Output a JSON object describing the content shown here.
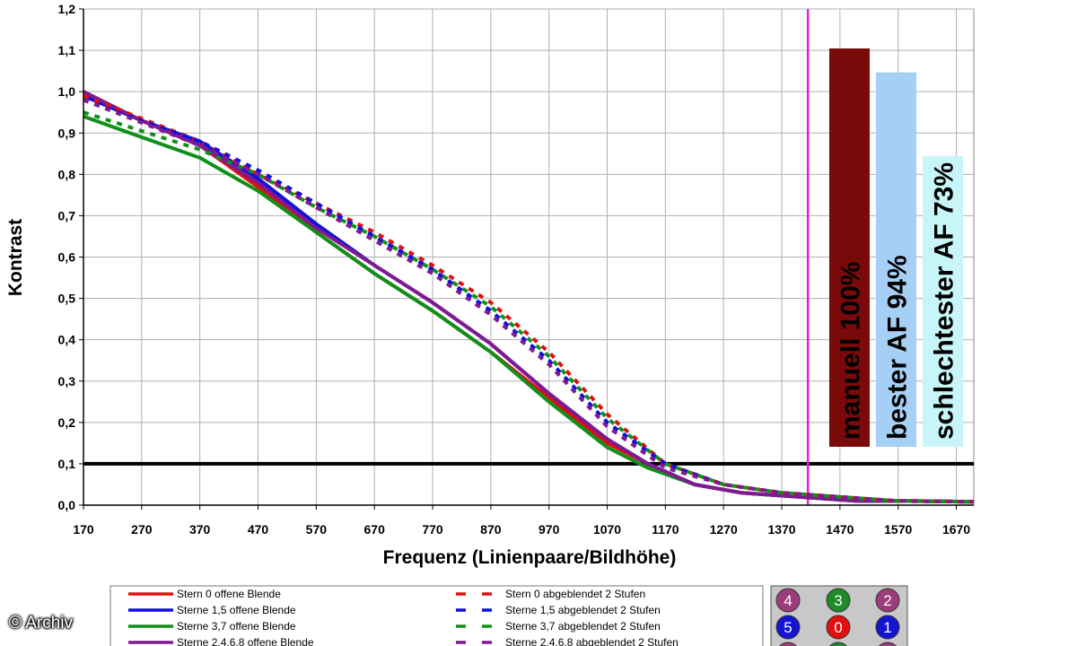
{
  "chart_data": {
    "type": "line",
    "xlabel": "Frequenz (Linienpaare/Bildhöhe)",
    "ylabel": "Kontrast",
    "xlim": [
      170,
      1700
    ],
    "ylim": [
      0,
      1.2
    ],
    "x_ticks": [
      "170",
      "270",
      "370",
      "470",
      "570",
      "670",
      "770",
      "870",
      "970",
      "1070",
      "1170",
      "1270",
      "1370",
      "1470",
      "1570",
      "1670"
    ],
    "y_ticks": [
      "0,0",
      "0,1",
      "0,2",
      "0,3",
      "0,4",
      "0,5",
      "0,6",
      "0,7",
      "0,8",
      "0,9",
      "1,0",
      "1,1",
      "1,2"
    ],
    "threshold_line": {
      "y": 0.1,
      "color": "#000000"
    },
    "marker_line": {
      "x": 1415,
      "color": "#e020e0"
    },
    "series": [
      {
        "name": "Stern 0 offene Blende",
        "color": "#e01010",
        "dash": false,
        "x": [
          170,
          270,
          370,
          470,
          570,
          670,
          770,
          870,
          970,
          1070,
          1140,
          1220,
          1300,
          1400,
          1500,
          1600,
          1700
        ],
        "y": [
          1.0,
          0.93,
          0.87,
          0.77,
          0.66,
          0.56,
          0.47,
          0.37,
          0.26,
          0.15,
          0.1,
          0.05,
          0.03,
          0.02,
          0.01,
          0.01,
          0.008
        ]
      },
      {
        "name": "Sterne 1,5 offene Blende",
        "color": "#1010e0",
        "dash": false,
        "x": [
          170,
          270,
          370,
          470,
          570,
          670,
          770,
          870,
          970,
          1070,
          1140,
          1220,
          1300,
          1400,
          1500,
          1600,
          1700
        ],
        "y": [
          0.99,
          0.93,
          0.88,
          0.79,
          0.68,
          0.58,
          0.49,
          0.39,
          0.27,
          0.16,
          0.1,
          0.05,
          0.03,
          0.02,
          0.01,
          0.01,
          0.008
        ]
      },
      {
        "name": "Sterne 3,7 offene Blende",
        "color": "#10901a",
        "dash": false,
        "x": [
          170,
          270,
          370,
          470,
          570,
          670,
          770,
          870,
          970,
          1070,
          1140,
          1220,
          1300,
          1400,
          1500,
          1600,
          1700
        ],
        "y": [
          0.94,
          0.89,
          0.84,
          0.76,
          0.66,
          0.56,
          0.47,
          0.37,
          0.25,
          0.14,
          0.09,
          0.05,
          0.03,
          0.02,
          0.01,
          0.01,
          0.008
        ]
      },
      {
        "name": "Sterne 2,4,6,8 offene Blende",
        "color": "#801a90",
        "dash": false,
        "x": [
          170,
          270,
          370,
          470,
          570,
          670,
          770,
          870,
          970,
          1070,
          1140,
          1220,
          1300,
          1400,
          1500,
          1600,
          1700
        ],
        "y": [
          1.0,
          0.93,
          0.87,
          0.78,
          0.67,
          0.58,
          0.49,
          0.39,
          0.27,
          0.16,
          0.1,
          0.05,
          0.03,
          0.02,
          0.01,
          0.01,
          0.008
        ]
      },
      {
        "name": "Stern 0 abgeblendet 2 Stufen",
        "color": "#e01010",
        "dash": true,
        "x": [
          170,
          370,
          470,
          570,
          670,
          770,
          870,
          970,
          1070,
          1170,
          1270,
          1370,
          1470,
          1570,
          1700
        ],
        "y": [
          0.99,
          0.88,
          0.8,
          0.73,
          0.66,
          0.58,
          0.49,
          0.37,
          0.22,
          0.1,
          0.05,
          0.03,
          0.02,
          0.01,
          0.008
        ]
      },
      {
        "name": "Sterne 1,5 abgeblendet 2 Stufen",
        "color": "#1010e0",
        "dash": true,
        "x": [
          170,
          370,
          470,
          570,
          670,
          770,
          870,
          970,
          1070,
          1170,
          1270,
          1370,
          1470,
          1570,
          1700
        ],
        "y": [
          0.98,
          0.88,
          0.81,
          0.73,
          0.65,
          0.57,
          0.47,
          0.35,
          0.2,
          0.1,
          0.05,
          0.03,
          0.02,
          0.01,
          0.008
        ]
      },
      {
        "name": "Sterne 3,7 abgeblendet 2 Stufen",
        "color": "#10901a",
        "dash": true,
        "x": [
          170,
          370,
          470,
          570,
          670,
          770,
          870,
          970,
          1070,
          1170,
          1270,
          1370,
          1470,
          1570,
          1700
        ],
        "y": [
          0.95,
          0.86,
          0.8,
          0.72,
          0.65,
          0.57,
          0.48,
          0.36,
          0.21,
          0.1,
          0.05,
          0.03,
          0.02,
          0.01,
          0.008
        ]
      },
      {
        "name": "Sterne 2,4,6,8 abgeblendet 2 Stufen",
        "color": "#801a90",
        "dash": true,
        "x": [
          170,
          370,
          470,
          570,
          670,
          770,
          870,
          970,
          1070,
          1170,
          1270,
          1370,
          1470,
          1570,
          1700
        ],
        "y": [
          0.98,
          0.87,
          0.8,
          0.72,
          0.64,
          0.56,
          0.46,
          0.34,
          0.19,
          0.09,
          0.05,
          0.03,
          0.02,
          0.01,
          0.008
        ]
      }
    ],
    "bars": [
      {
        "label": "manuell 100%",
        "value": 100,
        "color": "#7a0a0a",
        "text_color": "#ffffff"
      },
      {
        "label": "bester AF 94%",
        "value": 94,
        "color": "#a6cff5",
        "text_color": "#000000"
      },
      {
        "label": "schlechtester AF 73%",
        "value": 73,
        "color": "#c8f5f8",
        "text_color": "#000000"
      }
    ]
  },
  "legend": {
    "left": [
      {
        "label": "Stern 0 offene Blende",
        "color": "#e01010"
      },
      {
        "label": "Sterne 1,5 offene Blende",
        "color": "#1010e0"
      },
      {
        "label": "Sterne 3,7 offene Blende",
        "color": "#10901a"
      },
      {
        "label": "Sterne 2,4,6,8 offene Blende",
        "color": "#801a90"
      }
    ],
    "right": [
      {
        "label": "Stern 0 abgeblendet 2 Stufen",
        "color": "#e01010"
      },
      {
        "label": "Sterne 1,5 abgeblendet 2 Stufen",
        "color": "#1010e0"
      },
      {
        "label": "Sterne 3,7 abgeblendet 2 Stufen",
        "color": "#10901a"
      },
      {
        "label": "Sterne 2,4,6,8 abgeblendet 2 Stufen",
        "color": "#801a90"
      }
    ]
  },
  "star_grid": [
    {
      "num": "4",
      "color": "#9a3d7a"
    },
    {
      "num": "3",
      "color": "#1e8a2a"
    },
    {
      "num": "2",
      "color": "#9a3d7a"
    },
    {
      "num": "5",
      "color": "#1515d0"
    },
    {
      "num": "0",
      "color": "#e01010"
    },
    {
      "num": "1",
      "color": "#1515d0"
    },
    {
      "num": "",
      "color": "#9a3d7a"
    },
    {
      "num": "",
      "color": "#1e8a2a"
    },
    {
      "num": "",
      "color": "#9a3d7a"
    }
  ],
  "watermark": "© Archiv"
}
